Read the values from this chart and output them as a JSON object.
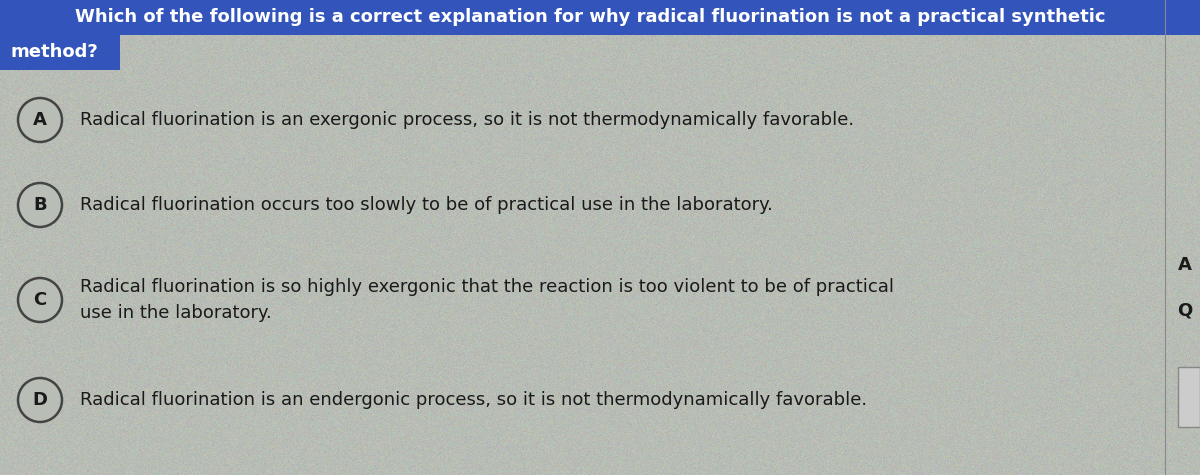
{
  "question_line1": "Which of the following is a correct explanation for why radical fluorination is not a practical synthetic",
  "question_line2": "method?",
  "question_bg_color": "#3355bb",
  "question_text_color": "#ffffff",
  "bg_color": "#b8bdb5",
  "options": [
    {
      "label": "A",
      "text": "Radical fluorination is an exergonic process, so it is not thermodynamically favorable."
    },
    {
      "label": "B",
      "text": "Radical fluorination occurs too slowly to be of practical use in the laboratory."
    },
    {
      "label": "C",
      "text": "Radical fluorination is so highly exergonic that the reaction is too violent to be of practical\nuse in the laboratory."
    },
    {
      "label": "D",
      "text": "Radical fluorination is an endergonic process, so it is not thermodynamically favorable."
    }
  ],
  "option_text_color": "#1a1a1a",
  "circle_color": "#b8bdb5",
  "circle_border": "#444444",
  "figsize": [
    12,
    4.75
  ],
  "dpi": 100
}
